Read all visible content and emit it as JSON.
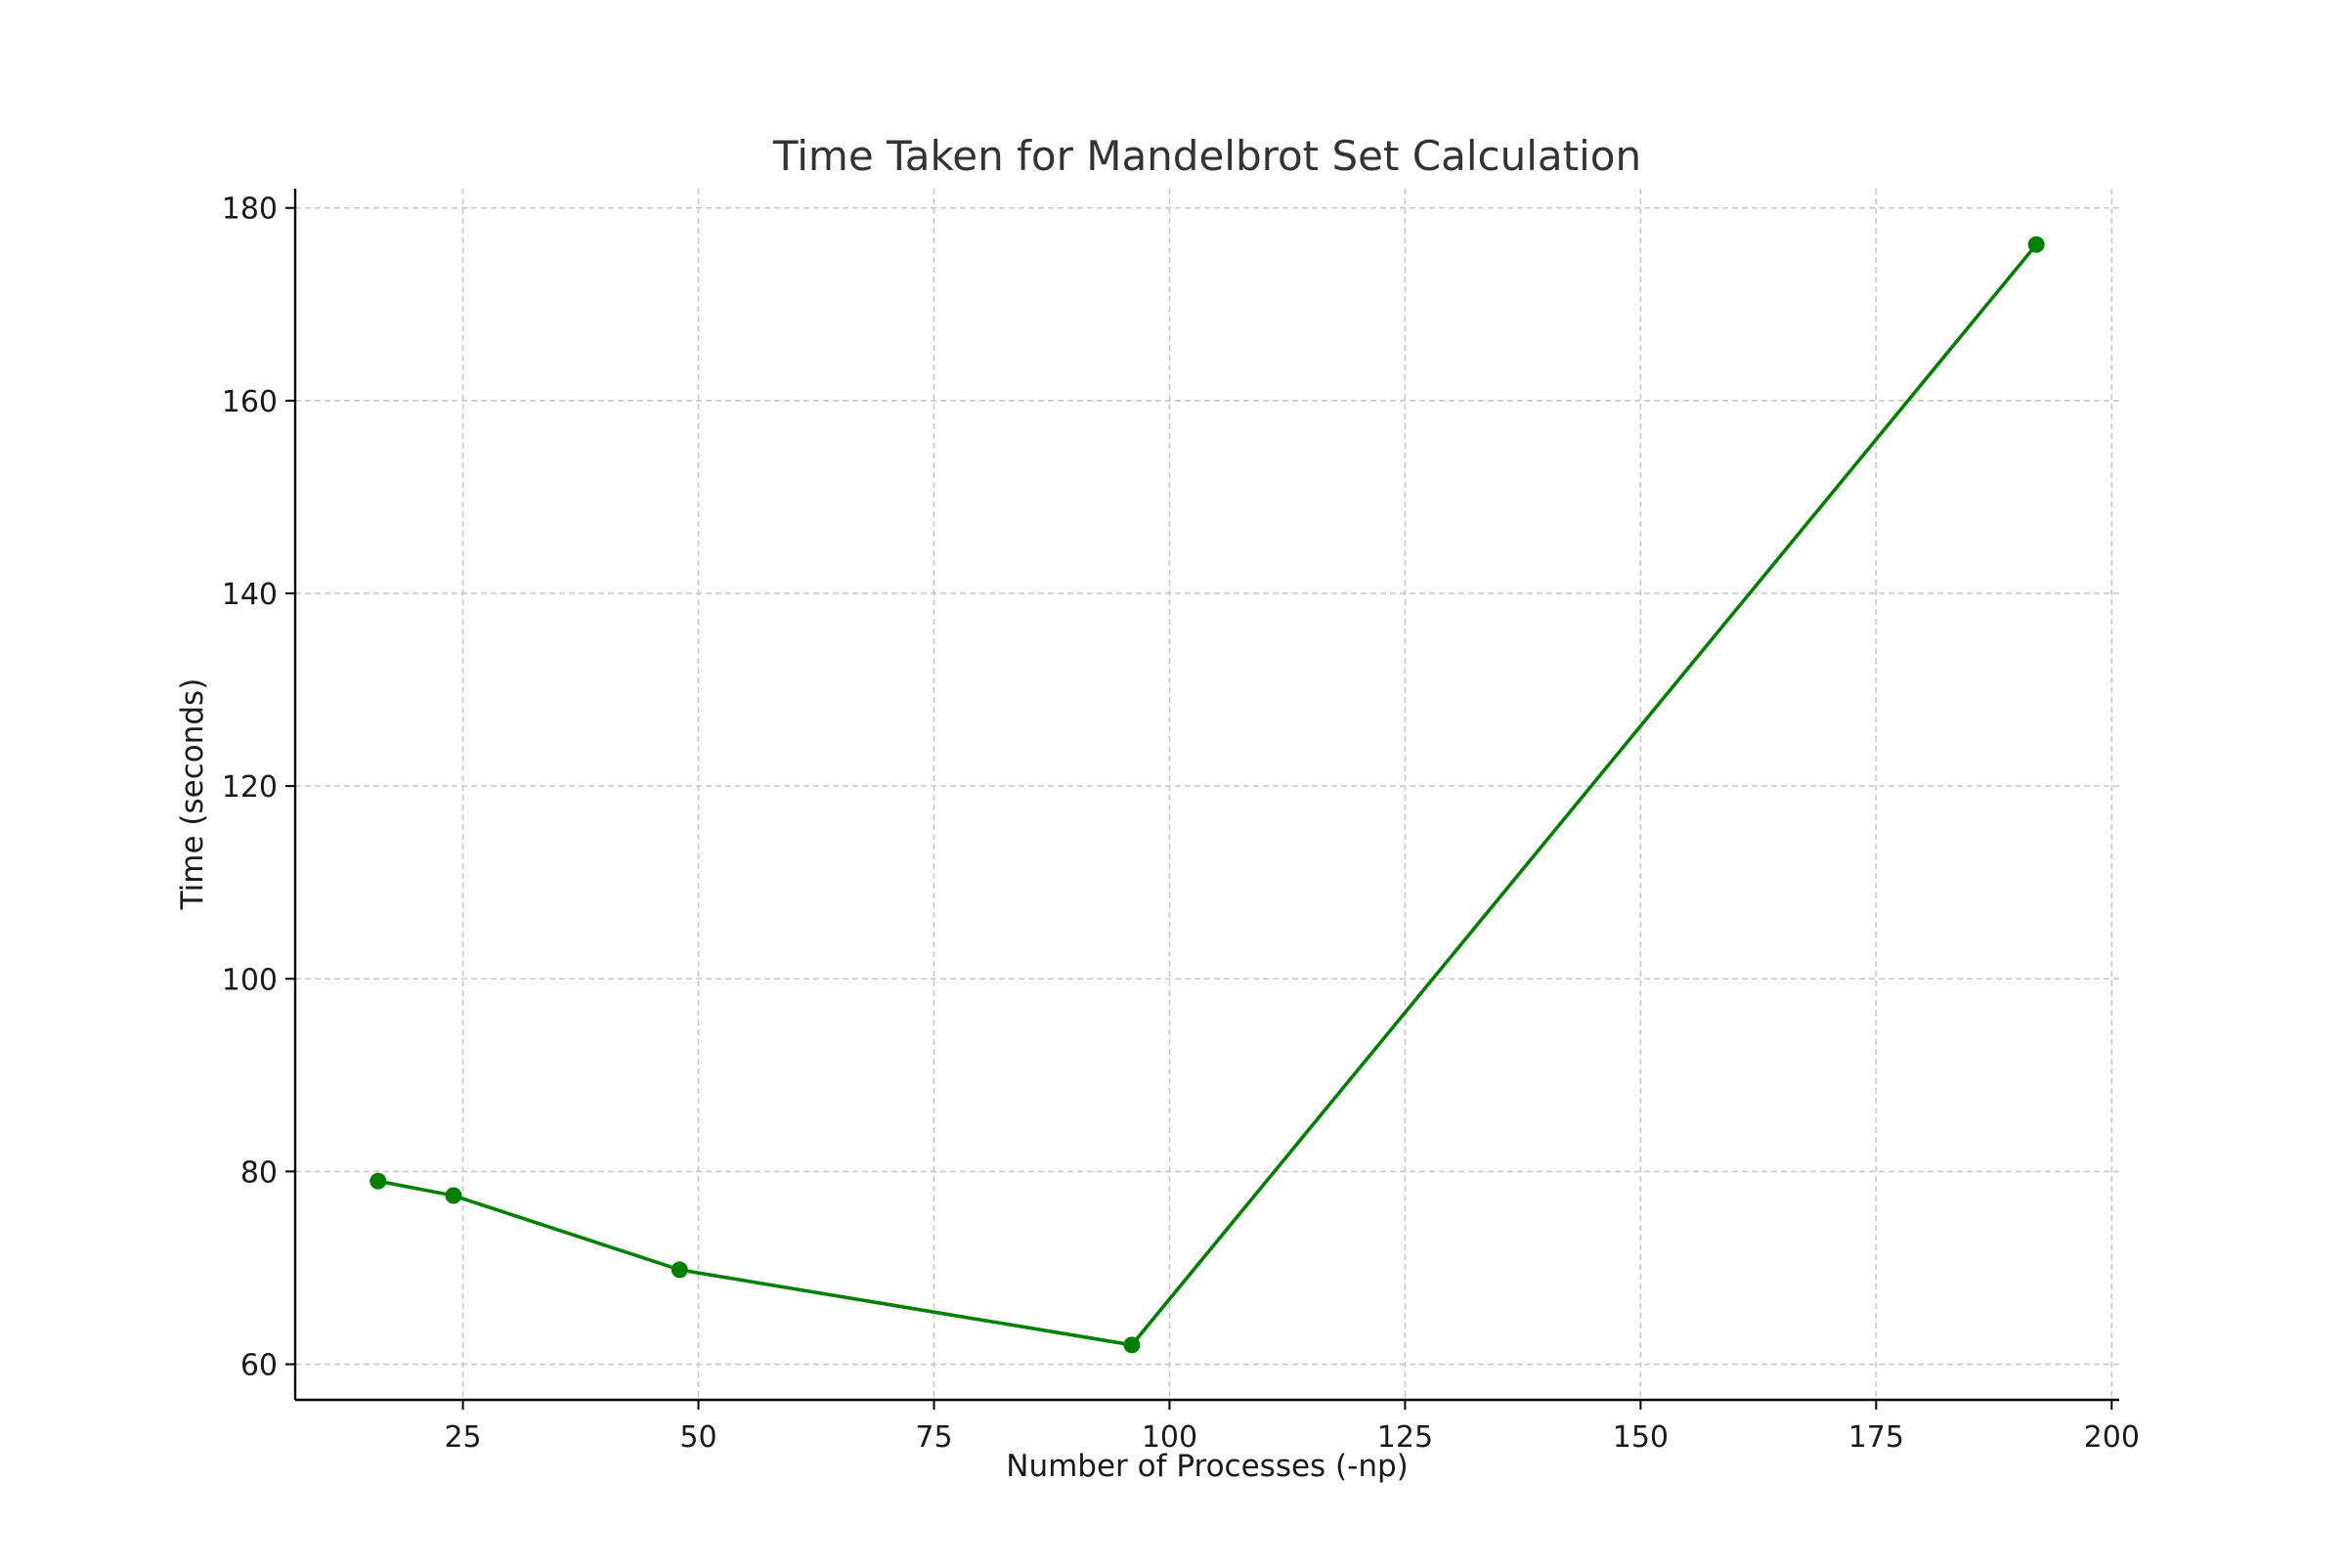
{
  "chart_data": {
    "type": "line",
    "title": "Time Taken for Mandelbrot Set Calculation",
    "xlabel": "Number of Processes (-np)",
    "ylabel": "Time (seconds)",
    "xlim": [
      7.2,
      200.8
    ],
    "ylim": [
      56.3,
      182.0
    ],
    "xticks": [
      25,
      50,
      75,
      100,
      125,
      150,
      175,
      200
    ],
    "yticks": [
      60,
      80,
      100,
      120,
      140,
      160,
      180
    ],
    "grid": true,
    "legend": "none",
    "series": [
      {
        "color": "#008000",
        "marker": "circle",
        "x": [
          16,
          24,
          48,
          96,
          192
        ],
        "y": [
          79,
          77.5,
          69.8,
          62,
          176.2
        ]
      }
    ]
  }
}
